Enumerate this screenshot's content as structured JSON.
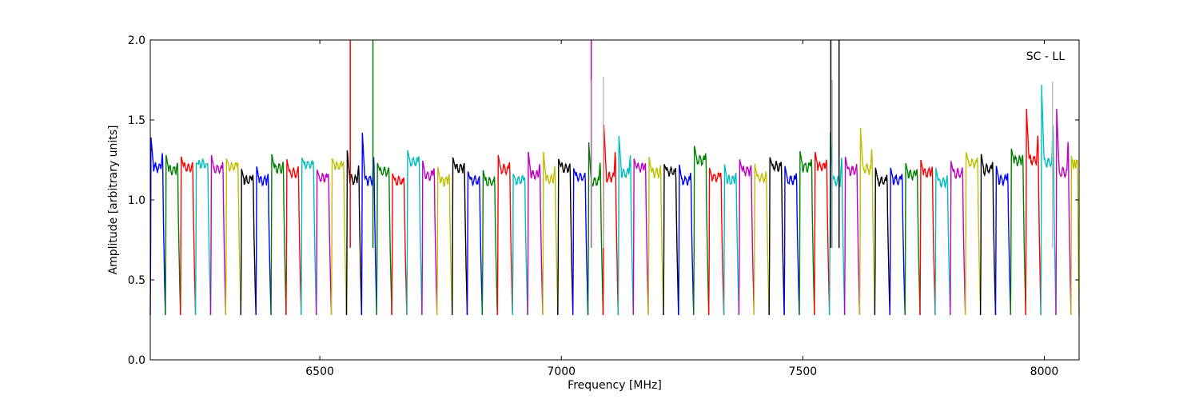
{
  "chart_data": {
    "type": "line",
    "annotation": "SC - LL",
    "xlabel": "Frequency [MHz]",
    "ylabel": "Amplitude [arbitrary units]",
    "xlim": [
      6149,
      8072
    ],
    "ylim": [
      0.0,
      2.0
    ],
    "x_ticks": [
      6500,
      7000,
      7500,
      8000
    ],
    "x_tick_labels": [
      "6500",
      "7000",
      "7500",
      "8000"
    ],
    "y_ticks": [
      0.0,
      0.5,
      1.0,
      1.5,
      2.0
    ],
    "y_tick_labels": [
      "0.0",
      "0.5",
      "1.0",
      "1.5",
      "2.0"
    ],
    "grid": false,
    "colors": [
      "#0000ff",
      "#008000",
      "#ff0000",
      "#00bfbf",
      "#bf00bf",
      "#bfbf00",
      "#000000"
    ],
    "band": {
      "first_start_mhz": 6149,
      "spacing_mhz": 31.25,
      "count": 62,
      "typical_edge_floor": 0.28,
      "typical_plateau": [
        1.1,
        1.25
      ]
    },
    "peaks": [
      {
        "x": 6176,
        "y": 1.39
      },
      {
        "x": 6220,
        "y": 1.27
      },
      {
        "x": 6249,
        "y": 1.23
      },
      {
        "x": 6285,
        "y": 1.28
      },
      {
        "x": 6300,
        "y": 1.28
      },
      {
        "x": 6547,
        "y": 1.26
      },
      {
        "x": 6562,
        "y": 1.31
      },
      {
        "x": 6584,
        "y": 1.42
      },
      {
        "x": 6607,
        "y": 1.41
      },
      {
        "x": 6958,
        "y": 1.3
      },
      {
        "x": 7060,
        "y": 1.36
      },
      {
        "x": 7083,
        "y": 1.47
      },
      {
        "x": 7114,
        "y": 1.4
      },
      {
        "x": 7558,
        "y": 1.42
      },
      {
        "x": 7618,
        "y": 1.45
      },
      {
        "x": 7982,
        "y": 1.57
      },
      {
        "x": 8016,
        "y": 1.72
      },
      {
        "x": 8047,
        "y": 1.57
      }
    ],
    "rfi_spikes": [
      {
        "x": 6563,
        "color": "#ff0000",
        "y_top": 2.0
      },
      {
        "x": 6610,
        "color": "#008000",
        "y_top": 2.0
      },
      {
        "x": 7062,
        "color": "#bf00bf",
        "y_top": 2.0
      },
      {
        "x": 7558,
        "color": "#000000",
        "y_top": 2.0
      },
      {
        "x": 7575,
        "color": "#000000",
        "y_top": 2.0
      },
      {
        "x": 7063,
        "color": "#bfbfbf",
        "y_top": 1.75
      },
      {
        "x": 7087,
        "color": "#bfbfbf",
        "y_top": 1.77
      },
      {
        "x": 7561,
        "color": "#bfbfbf",
        "y_top": 1.75
      },
      {
        "x": 8017,
        "color": "#bfbfbf",
        "y_top": 1.74
      }
    ]
  }
}
